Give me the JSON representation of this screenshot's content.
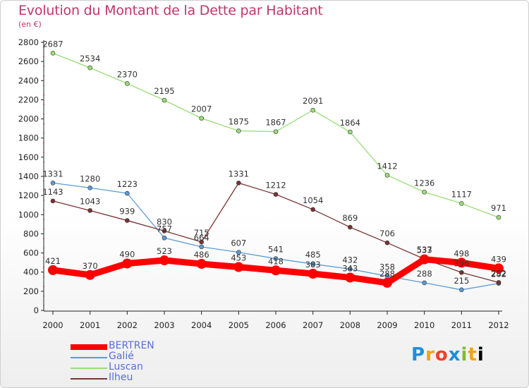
{
  "chart_data": {
    "type": "line",
    "title": "Evolution du Montant de la Dette par Habitant",
    "subtitle": "(en €)",
    "categories": [
      "2000",
      "2001",
      "2002",
      "2003",
      "2004",
      "2005",
      "2006",
      "2007",
      "2008",
      "2009",
      "2010",
      "2011",
      "2012"
    ],
    "ylim": [
      0,
      2800
    ],
    "yticks": [
      0,
      200,
      400,
      600,
      800,
      1000,
      1200,
      1400,
      1600,
      1800,
      2000,
      2200,
      2400,
      2600,
      2800
    ],
    "grid": false,
    "legend_position": "bottom-left",
    "series": [
      {
        "name": "BERTREN",
        "color": "#ff0000",
        "emphasis": true,
        "values": [
          421,
          370,
          490,
          523,
          486,
          453,
          418,
          383,
          343,
          288,
          533,
          498,
          439
        ]
      },
      {
        "name": "Galié",
        "color": "#5b9bd5",
        "values": [
          1331,
          1280,
          1223,
          757,
          664,
          607,
          541,
          485,
          432,
          358,
          288,
          215,
          282
        ]
      },
      {
        "name": "Luscan",
        "color": "#99dd77",
        "values": [
          2687,
          2534,
          2370,
          2195,
          2007,
          1875,
          1867,
          2091,
          1864,
          1412,
          1236,
          1117,
          971
        ]
      },
      {
        "name": "Ilheu",
        "color": "#7a3333",
        "values": [
          1143,
          1043,
          939,
          830,
          715,
          1331,
          1212,
          1054,
          869,
          706,
          537,
          396,
          292
        ]
      }
    ]
  },
  "logo": {
    "letters": [
      "P",
      "r",
      "o",
      "x",
      "i",
      "t",
      "i"
    ]
  }
}
